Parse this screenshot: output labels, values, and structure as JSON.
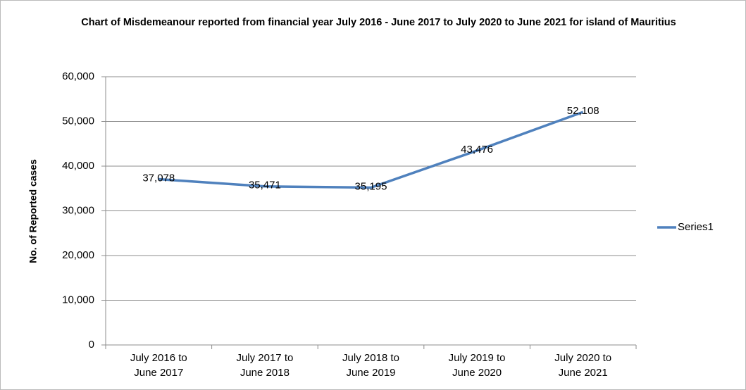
{
  "chart_data": {
    "type": "line",
    "title": "Chart  of Misdemeanour reported from financial year July 2016 - June 2017 to July 2020 to June 2021  for island of Mauritius",
    "y_label": "No. of Reported cases",
    "categories": [
      "July 2016 to June 2017",
      "July 2017 to June 2018",
      "July 2018 to June 2019",
      "July 2019 to June 2020",
      "July 2020 to June 2021"
    ],
    "series": [
      {
        "name": "Series1",
        "color": "#4f81bd",
        "values": [
          37078,
          35471,
          35195,
          43476,
          52108
        ],
        "value_labels": [
          "37,078",
          "35,471",
          "35,195",
          "43,476",
          "52,108"
        ]
      }
    ],
    "ylim": [
      0,
      60000
    ],
    "yticks": [
      0,
      {
        "value": 10000,
        "label": "10,000"
      },
      {
        "value": 20000,
        "label": "20,000"
      },
      {
        "value": 30000,
        "label": "30,000"
      },
      {
        "value": 40000,
        "label": "40,000"
      },
      {
        "value": 50000,
        "label": "50,000"
      },
      {
        "value": 60000,
        "label": "60,000"
      }
    ],
    "grid": true,
    "legend": "right"
  }
}
